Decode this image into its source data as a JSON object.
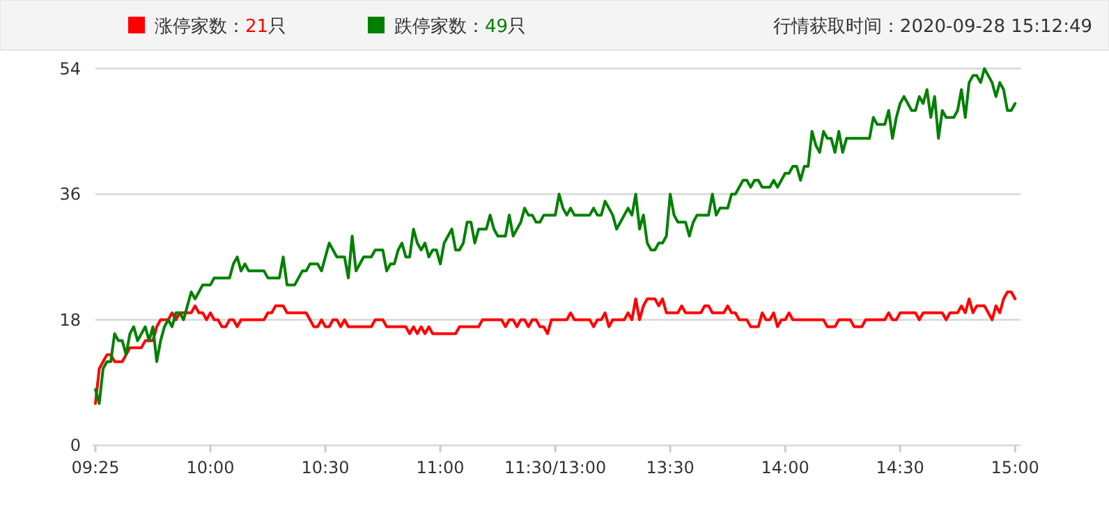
{
  "chart_data": {
    "type": "line",
    "legend": "top",
    "grid": "y",
    "marker": "none",
    "line_style": "solid",
    "annotations": [
      "行情获取时间：2020-09-28 15:12:49"
    ],
    "categories": [
      "09:25",
      null,
      null,
      null,
      null,
      null,
      null,
      null,
      null,
      null,
      null,
      null,
      null,
      null,
      null,
      null,
      null,
      null,
      null,
      null,
      null,
      null,
      null,
      null,
      null,
      null,
      null,
      null,
      null,
      null,
      "10:00",
      null,
      null,
      null,
      null,
      null,
      null,
      null,
      null,
      null,
      null,
      null,
      null,
      null,
      null,
      null,
      null,
      null,
      null,
      null,
      null,
      null,
      null,
      null,
      null,
      null,
      null,
      null,
      null,
      null,
      "10:30",
      null,
      null,
      null,
      null,
      null,
      null,
      null,
      null,
      null,
      null,
      null,
      null,
      null,
      null,
      null,
      null,
      null,
      null,
      null,
      null,
      null,
      null,
      null,
      null,
      null,
      null,
      null,
      null,
      null,
      "11:00",
      null,
      null,
      null,
      null,
      null,
      null,
      null,
      null,
      null,
      null,
      null,
      null,
      null,
      null,
      null,
      null,
      null,
      null,
      null,
      null,
      null,
      null,
      null,
      null,
      null,
      null,
      null,
      null,
      null,
      "11:30/13:00",
      null,
      null,
      null,
      null,
      null,
      null,
      null,
      null,
      null,
      null,
      null,
      null,
      null,
      null,
      null,
      null,
      null,
      null,
      null,
      null,
      null,
      null,
      null,
      null,
      null,
      null,
      null,
      null,
      null,
      "13:30",
      null,
      null,
      null,
      null,
      null,
      null,
      null,
      null,
      null,
      null,
      null,
      null,
      null,
      null,
      null,
      null,
      null,
      null,
      null,
      null,
      null,
      null,
      null,
      null,
      null,
      null,
      null,
      null,
      null,
      "14:00",
      null,
      null,
      null,
      null,
      null,
      null,
      null,
      null,
      null,
      null,
      null,
      null,
      null,
      null,
      null,
      null,
      null,
      null,
      null,
      null,
      null,
      null,
      null,
      null,
      null,
      null,
      null,
      null,
      null,
      "14:30",
      null,
      null,
      null,
      null,
      null,
      null,
      null,
      null,
      null,
      null,
      null,
      null,
      null,
      null,
      null,
      null,
      null,
      null,
      null,
      null,
      null,
      null,
      null,
      null,
      null,
      null,
      null,
      null,
      null,
      "15:00"
    ],
    "ylim": [
      0,
      54
    ],
    "yticks": [
      0,
      18,
      36,
      54
    ],
    "series": [
      {
        "name": "涨停家数：21只",
        "color": "#ff0000",
        "values": [
          6,
          11,
          12,
          13,
          13,
          12,
          12,
          12,
          13,
          14,
          14,
          14,
          14,
          15,
          15,
          15,
          17,
          18,
          18,
          18,
          19,
          18,
          19,
          19,
          19,
          19,
          20,
          19,
          19,
          18,
          19,
          18,
          18,
          17,
          17,
          18,
          18,
          17,
          18,
          18,
          18,
          18,
          18,
          18,
          18,
          19,
          19,
          20,
          20,
          20,
          19,
          19,
          19,
          19,
          19,
          19,
          18,
          17,
          17,
          18,
          17,
          17,
          18,
          18,
          17,
          18,
          17,
          17,
          17,
          17,
          17,
          17,
          17,
          18,
          18,
          18,
          17,
          17,
          17,
          17,
          17,
          17,
          16,
          17,
          16,
          17,
          16,
          17,
          16,
          16,
          16,
          16,
          16,
          16,
          16,
          17,
          17,
          17,
          17,
          17,
          17,
          18,
          18,
          18,
          18,
          18,
          18,
          17,
          18,
          18,
          17,
          18,
          18,
          17,
          18,
          18,
          17,
          17,
          16,
          18,
          18,
          18,
          18,
          18,
          19,
          18,
          18,
          18,
          18,
          18,
          17,
          18,
          18,
          19,
          17,
          18,
          18,
          18,
          18,
          19,
          18,
          21,
          18,
          20,
          21,
          21,
          21,
          20,
          21,
          19,
          19,
          19,
          19,
          20,
          19,
          19,
          19,
          19,
          19,
          20,
          20,
          19,
          19,
          19,
          19,
          20,
          19,
          19,
          18,
          18,
          18,
          17,
          17,
          17,
          19,
          18,
          18,
          19,
          17,
          18,
          18,
          19,
          18,
          18,
          18,
          18,
          18,
          18,
          18,
          18,
          18,
          17,
          17,
          17,
          18,
          18,
          18,
          18,
          17,
          17,
          17,
          18,
          18,
          18,
          18,
          18,
          18,
          19,
          18,
          18,
          19,
          19,
          19,
          19,
          19,
          18,
          19,
          19,
          19,
          19,
          19,
          19,
          18,
          19,
          19,
          19,
          20,
          19,
          21,
          19,
          20,
          20,
          20,
          19,
          18,
          20,
          19,
          21,
          22,
          22,
          21
        ]
      },
      {
        "name": "跌停家数：49只",
        "color": "#008000",
        "values": [
          8,
          6,
          11,
          12,
          12,
          16,
          15,
          15,
          13,
          16,
          17,
          15,
          16,
          17,
          15,
          17,
          12,
          15,
          17,
          18,
          17,
          19,
          19,
          18,
          20,
          22,
          21,
          22,
          23,
          23,
          23,
          24,
          24,
          24,
          24,
          24,
          26,
          27,
          25,
          26,
          25,
          25,
          25,
          25,
          25,
          24,
          24,
          24,
          24,
          27,
          23,
          23,
          23,
          24,
          25,
          25,
          26,
          26,
          26,
          25,
          27,
          29,
          28,
          27,
          27,
          27,
          24,
          30,
          25,
          26,
          27,
          27,
          27,
          28,
          28,
          28,
          25,
          26,
          26,
          28,
          29,
          27,
          27,
          31,
          29,
          28,
          29,
          27,
          28,
          28,
          26,
          29,
          30,
          31,
          28,
          28,
          29,
          32,
          32,
          29,
          31,
          31,
          31,
          33,
          31,
          30,
          30,
          30,
          33,
          30,
          31,
          32,
          34,
          33,
          33,
          32,
          32,
          33,
          33,
          33,
          33,
          36,
          34,
          33,
          34,
          33,
          33,
          33,
          33,
          33,
          34,
          33,
          33,
          35,
          34,
          33,
          31,
          32,
          33,
          34,
          33,
          36,
          31,
          33,
          29,
          28,
          28,
          29,
          29,
          30,
          36,
          33,
          32,
          32,
          32,
          30,
          32,
          33,
          33,
          33,
          33,
          36,
          33,
          34,
          34,
          34,
          36,
          36,
          37,
          38,
          38,
          37,
          38,
          38,
          37,
          37,
          37,
          38,
          37,
          38,
          39,
          39,
          40,
          40,
          38,
          40,
          40,
          45,
          43,
          42,
          45,
          44,
          44,
          42,
          45,
          42,
          44,
          44,
          44,
          44,
          44,
          44,
          44,
          47,
          46,
          46,
          46,
          48,
          44,
          47,
          49,
          50,
          49,
          48,
          48,
          50,
          49,
          51,
          47,
          50,
          44,
          48,
          47,
          47,
          47,
          48,
          51,
          47,
          52,
          53,
          53,
          52,
          54,
          53,
          52,
          50,
          52,
          51,
          48,
          48,
          49
        ]
      }
    ]
  }
}
